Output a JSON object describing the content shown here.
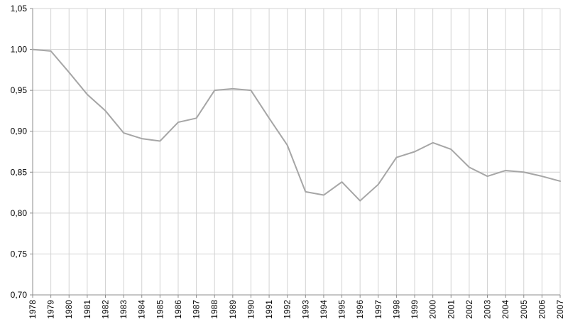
{
  "chart_data": {
    "type": "line",
    "title": "",
    "xlabel": "",
    "ylabel": "",
    "x": [
      "1978",
      "1979",
      "1980",
      "1981",
      "1982",
      "1983",
      "1984",
      "1985",
      "1986",
      "1987",
      "1988",
      "1989",
      "1990",
      "1991",
      "1992",
      "1993",
      "1994",
      "1995",
      "1996",
      "1997",
      "1998",
      "1999",
      "2000",
      "2001",
      "2002",
      "2003",
      "2004",
      "2005",
      "2006",
      "2007"
    ],
    "values": [
      1.0,
      0.998,
      0.972,
      0.945,
      0.925,
      0.898,
      0.891,
      0.888,
      0.911,
      0.916,
      0.95,
      0.952,
      0.95,
      0.916,
      0.883,
      0.826,
      0.822,
      0.838,
      0.815,
      0.835,
      0.868,
      0.875,
      0.886,
      0.878,
      0.856,
      0.845,
      0.852,
      0.85,
      0.845,
      0.839
    ],
    "ylim": [
      0.7,
      1.05
    ],
    "ytick_step": 0.05,
    "ytick_labels": [
      "0,70",
      "0,75",
      "0,80",
      "0,85",
      "0,90",
      "0,95",
      "1,00",
      "1,05"
    ],
    "decimal_separator": ",",
    "grid": true,
    "legend": "none",
    "colors": {
      "line": "#a6a6a6",
      "grid": "#d3d3d3",
      "axis": "#8c8c8c",
      "text": "#000000",
      "background": "#ffffff"
    },
    "line_width": 2,
    "font_size_px": 12
  }
}
